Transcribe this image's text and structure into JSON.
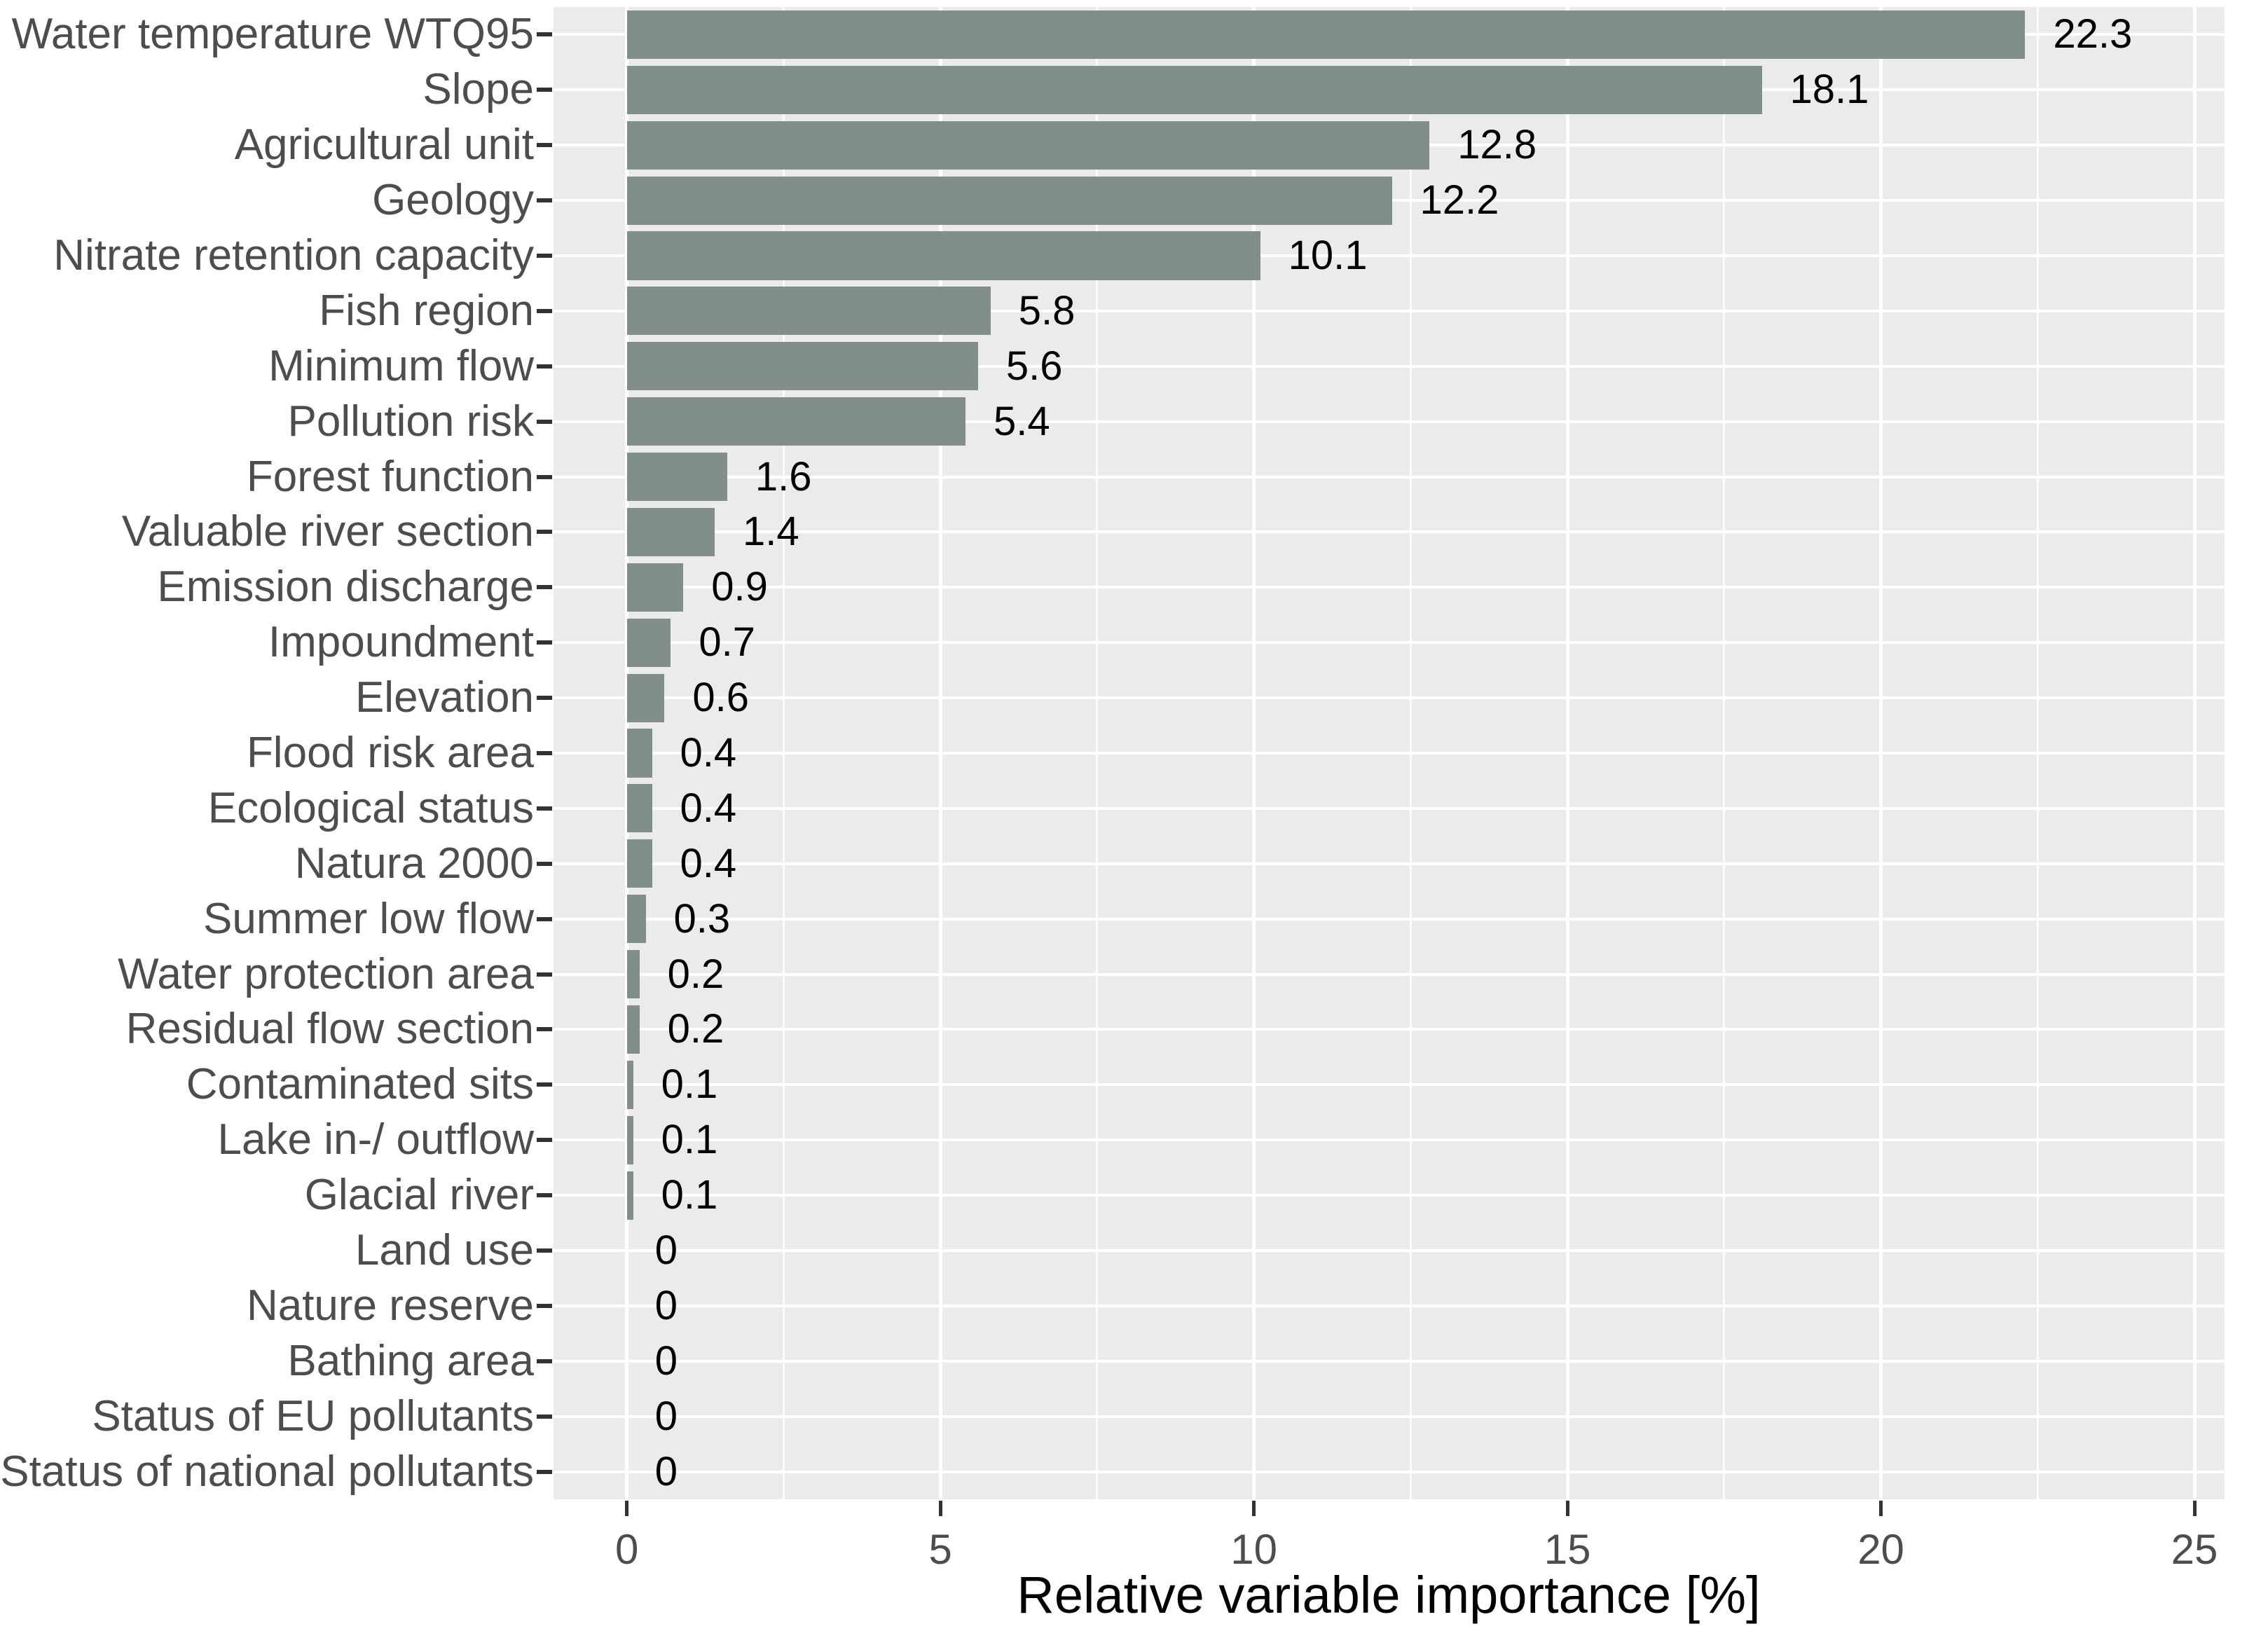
{
  "chart_data": {
    "type": "bar",
    "orientation": "horizontal",
    "title": "",
    "xlabel": "Relative variable importance [%]",
    "ylabel": "",
    "categories": [
      "Water temperature WTQ95",
      "Slope",
      "Agricultural unit",
      "Geology",
      "Nitrate retention capacity",
      "Fish region",
      "Minimum flow",
      "Pollution risk",
      "Forest function",
      "Valuable river section",
      "Emission discharge",
      "Impoundment",
      "Elevation",
      "Flood risk area",
      "Ecological status",
      "Natura 2000",
      "Summer low flow",
      "Water protection area",
      "Residual flow section",
      "Contaminated sits",
      "Lake in-/ outflow",
      "Glacial river",
      "Land use",
      "Nature reserve",
      "Bathing area",
      "Status of EU pollutants",
      "Status of national pollutants"
    ],
    "values": [
      22.3,
      18.1,
      12.8,
      12.2,
      10.1,
      5.8,
      5.6,
      5.4,
      1.6,
      1.4,
      0.9,
      0.7,
      0.6,
      0.4,
      0.4,
      0.4,
      0.3,
      0.2,
      0.2,
      0.1,
      0.1,
      0.1,
      0,
      0,
      0,
      0,
      0
    ],
    "value_labels": [
      "22.3",
      "18.1",
      "12.8",
      "12.2",
      "10.1",
      "5.8",
      "5.6",
      "5.4",
      "1.6",
      "1.4",
      "0.9",
      "0.7",
      "0.6",
      "0.4",
      "0.4",
      "0.4",
      "0.3",
      "0.2",
      "0.2",
      "0.1",
      "0.1",
      "0.1",
      "0",
      "0",
      "0",
      "0",
      "0"
    ],
    "x_ticks": [
      0,
      5,
      10,
      15,
      20,
      25
    ],
    "x_tick_labels": [
      "0",
      "5",
      "10",
      "15",
      "20",
      "25"
    ],
    "x_minor_ticks": [
      2.5,
      7.5,
      12.5,
      17.5,
      22.5
    ],
    "xlim": [
      -1.17,
      25.48
    ],
    "bar_width_fraction": 0.875,
    "grid": "major and minor vertical white gridlines, white horizontal gridline at each category",
    "legend": "none",
    "colors": {
      "bar": "#818E8C",
      "panel_bg": "#EBEBEB",
      "grid": "#FFFFFF",
      "axis_text": "#4D4D4D",
      "value_text": "#000000",
      "tick_mark": "#333333",
      "title_text": "#000000"
    }
  }
}
